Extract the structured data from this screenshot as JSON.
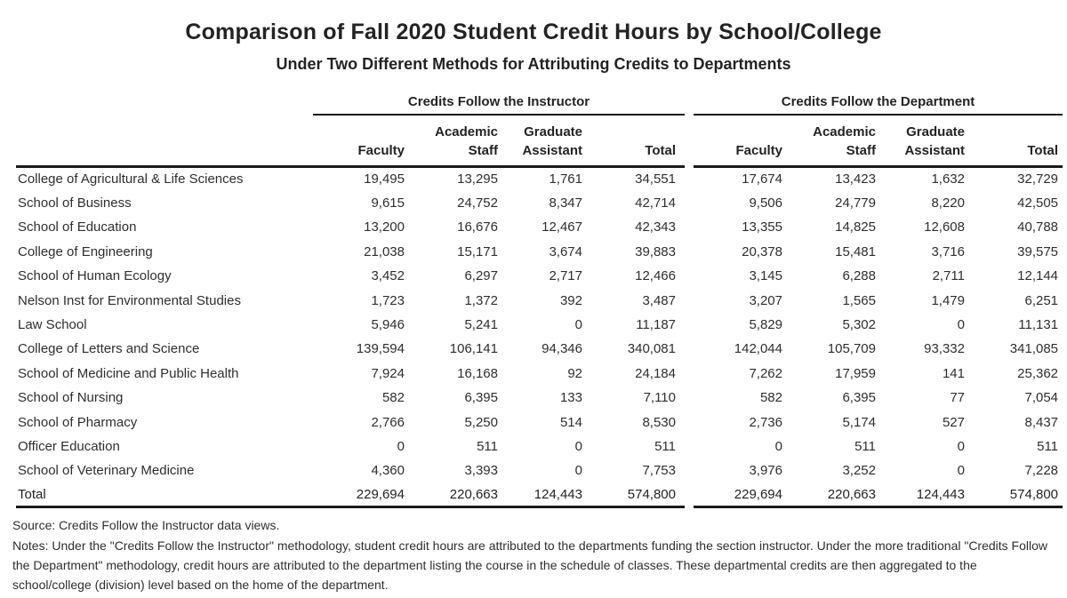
{
  "title": "Comparison of Fall 2020 Student Credit Hours by School/College",
  "subtitle": "Under Two Different Methods for Attributing Credits to Departments",
  "table": {
    "groups": [
      {
        "label": "Credits Follow the Instructor"
      },
      {
        "label": "Credits Follow the Department"
      }
    ],
    "columns": [
      {
        "top": "",
        "bottom": "Faculty"
      },
      {
        "top": "Academic",
        "bottom": "Staff"
      },
      {
        "top": "Graduate",
        "bottom": "Assistant"
      },
      {
        "top": "",
        "bottom": "Total"
      }
    ],
    "rows": [
      {
        "label": "College of Agricultural & Life Sciences",
        "instructor": [
          "19,495",
          "13,295",
          "1,761",
          "34,551"
        ],
        "department": [
          "17,674",
          "13,423",
          "1,632",
          "32,729"
        ]
      },
      {
        "label": "School of Business",
        "instructor": [
          "9,615",
          "24,752",
          "8,347",
          "42,714"
        ],
        "department": [
          "9,506",
          "24,779",
          "8,220",
          "42,505"
        ]
      },
      {
        "label": "School of Education",
        "instructor": [
          "13,200",
          "16,676",
          "12,467",
          "42,343"
        ],
        "department": [
          "13,355",
          "14,825",
          "12,608",
          "40,788"
        ]
      },
      {
        "label": "College of Engineering",
        "instructor": [
          "21,038",
          "15,171",
          "3,674",
          "39,883"
        ],
        "department": [
          "20,378",
          "15,481",
          "3,716",
          "39,575"
        ]
      },
      {
        "label": "School of Human Ecology",
        "instructor": [
          "3,452",
          "6,297",
          "2,717",
          "12,466"
        ],
        "department": [
          "3,145",
          "6,288",
          "2,711",
          "12,144"
        ]
      },
      {
        "label": "Nelson Inst for Environmental Studies",
        "instructor": [
          "1,723",
          "1,372",
          "392",
          "3,487"
        ],
        "department": [
          "3,207",
          "1,565",
          "1,479",
          "6,251"
        ]
      },
      {
        "label": "Law School",
        "instructor": [
          "5,946",
          "5,241",
          "0",
          "11,187"
        ],
        "department": [
          "5,829",
          "5,302",
          "0",
          "11,131"
        ]
      },
      {
        "label": "College of Letters and Science",
        "instructor": [
          "139,594",
          "106,141",
          "94,346",
          "340,081"
        ],
        "department": [
          "142,044",
          "105,709",
          "93,332",
          "341,085"
        ]
      },
      {
        "label": "School of Medicine and Public Health",
        "instructor": [
          "7,924",
          "16,168",
          "92",
          "24,184"
        ],
        "department": [
          "7,262",
          "17,959",
          "141",
          "25,362"
        ]
      },
      {
        "label": "School of Nursing",
        "instructor": [
          "582",
          "6,395",
          "133",
          "7,110"
        ],
        "department": [
          "582",
          "6,395",
          "77",
          "7,054"
        ]
      },
      {
        "label": "School of Pharmacy",
        "instructor": [
          "2,766",
          "5,250",
          "514",
          "8,530"
        ],
        "department": [
          "2,736",
          "5,174",
          "527",
          "8,437"
        ]
      },
      {
        "label": "Officer Education",
        "instructor": [
          "0",
          "511",
          "0",
          "511"
        ],
        "department": [
          "0",
          "511",
          "0",
          "511"
        ]
      },
      {
        "label": "School of Veterinary Medicine",
        "instructor": [
          "4,360",
          "3,393",
          "0",
          "7,753"
        ],
        "department": [
          "3,976",
          "3,252",
          "0",
          "7,228"
        ]
      }
    ],
    "total_row": {
      "label": "Total",
      "instructor": [
        "229,694",
        "220,663",
        "124,443",
        "574,800"
      ],
      "department": [
        "229,694",
        "220,663",
        "124,443",
        "574,800"
      ]
    }
  },
  "footer": {
    "source": "Source: Credits Follow the Instructor data views.",
    "notes": "Notes: Under the \"Credits Follow the Instructor\" methodology, student credit hours are attributed to the departments funding the section instructor. Under the more traditional \"Credits Follow the Department\" methodology, credit hours are attributed to the department listing the course in the schedule of classes. These departmental credits are then aggregated to the school/college (division) level based on the home of the department."
  }
}
